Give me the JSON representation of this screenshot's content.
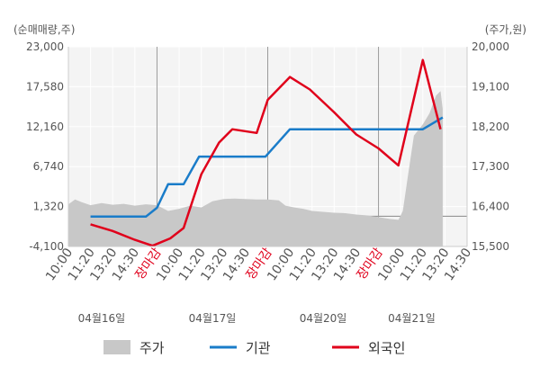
{
  "chart_data": {
    "type": "line",
    "title": "",
    "y_left": {
      "label": "(순매매량,주)",
      "ticks": [
        "23,000",
        "17,580",
        "12,160",
        "6,740",
        "1,320",
        "-4,100"
      ],
      "range": [
        -4100,
        23000
      ]
    },
    "y_right": {
      "label": "(주가,원)",
      "ticks": [
        "20,000",
        "19,100",
        "18,200",
        "17,300",
        "16,400",
        "15,500"
      ],
      "range": [
        15500,
        20000
      ]
    },
    "x_ticks": [
      {
        "label": "10:00",
        "close": false
      },
      {
        "label": "11:20",
        "close": false
      },
      {
        "label": "13:20",
        "close": false
      },
      {
        "label": "14:30",
        "close": false
      },
      {
        "label": "장마감",
        "close": true
      },
      {
        "label": "10:00",
        "close": false
      },
      {
        "label": "11:20",
        "close": false
      },
      {
        "label": "13:20",
        "close": false
      },
      {
        "label": "14:30",
        "close": false
      },
      {
        "label": "장마감",
        "close": true
      },
      {
        "label": "10:00",
        "close": false
      },
      {
        "label": "11:20",
        "close": false
      },
      {
        "label": "13:20",
        "close": false
      },
      {
        "label": "14:30",
        "close": false
      },
      {
        "label": "장마감",
        "close": true
      },
      {
        "label": "10:00",
        "close": false
      },
      {
        "label": "11:20",
        "close": false
      },
      {
        "label": "13:20",
        "close": false
      },
      {
        "label": "14:30",
        "close": false
      }
    ],
    "dates": [
      {
        "label": "04월16일",
        "tick_index": 1.5
      },
      {
        "label": "04월17일",
        "tick_index": 6.5
      },
      {
        "label": "04월20일",
        "tick_index": 11.5
      },
      {
        "label": "04월21일",
        "tick_index": 15.5
      }
    ],
    "legend": [
      {
        "name": "주가",
        "color": "#c8c8c8",
        "kind": "area"
      },
      {
        "name": "기관",
        "color": "#1a7cc9",
        "kind": "line"
      },
      {
        "name": "외국인",
        "color": "#e0001b",
        "kind": "line"
      }
    ],
    "series": [
      {
        "name": "기관",
        "axis": "left",
        "color": "#1a7cc9",
        "x": [
          1.0,
          1.5,
          2.5,
          3.5,
          4.0,
          4.5,
          5.2,
          5.9,
          6.9,
          7.9,
          8.9,
          10.0,
          11.0,
          12.0,
          13.0,
          14.0,
          15.0,
          16.0,
          16.9
        ],
        "values": [
          -50,
          -50,
          -50,
          -50,
          1150,
          4350,
          4350,
          8100,
          8100,
          8100,
          8100,
          11800,
          11800,
          11800,
          11800,
          11800,
          11800,
          11800,
          13400
        ]
      },
      {
        "name": "외국인",
        "axis": "left",
        "color": "#e0001b",
        "x": [
          1.0,
          2.0,
          3.0,
          3.8,
          4.6,
          5.2,
          6.0,
          6.8,
          7.4,
          8.5,
          9.0,
          10.0,
          10.9,
          12.0,
          13.0,
          14.0,
          14.9,
          16.0,
          16.8
        ],
        "values": [
          -1100,
          -2000,
          -3200,
          -4000,
          -3000,
          -1600,
          5700,
          10000,
          11800,
          11300,
          15800,
          18900,
          17200,
          14100,
          11100,
          9200,
          6900,
          21200,
          11800
        ]
      },
      {
        "name": "주가",
        "axis": "right",
        "color": "#c8c8c8",
        "x": [
          0.0,
          0.3,
          0.6,
          1.0,
          1.5,
          2.0,
          2.5,
          3.0,
          3.5,
          4.0,
          4.5,
          5.0,
          5.5,
          6.0,
          6.5,
          7.0,
          7.5,
          8.0,
          8.5,
          9.0,
          9.5,
          9.8,
          10.2,
          10.6,
          11.0,
          11.5,
          12.0,
          12.5,
          13.0,
          13.5,
          14.0,
          14.5,
          14.9,
          15.1,
          15.3,
          15.6,
          16.0,
          16.3,
          16.6,
          16.8,
          16.9
        ],
        "values": [
          16450,
          16560,
          16500,
          16430,
          16480,
          16440,
          16460,
          16420,
          16450,
          16430,
          16300,
          16350,
          16420,
          16380,
          16520,
          16570,
          16580,
          16570,
          16560,
          16560,
          16540,
          16420,
          16380,
          16350,
          16300,
          16280,
          16260,
          16250,
          16220,
          16200,
          16160,
          16120,
          16100,
          16300,
          17000,
          18000,
          18250,
          18500,
          18900,
          19000,
          18600
        ]
      }
    ],
    "grid": true
  }
}
